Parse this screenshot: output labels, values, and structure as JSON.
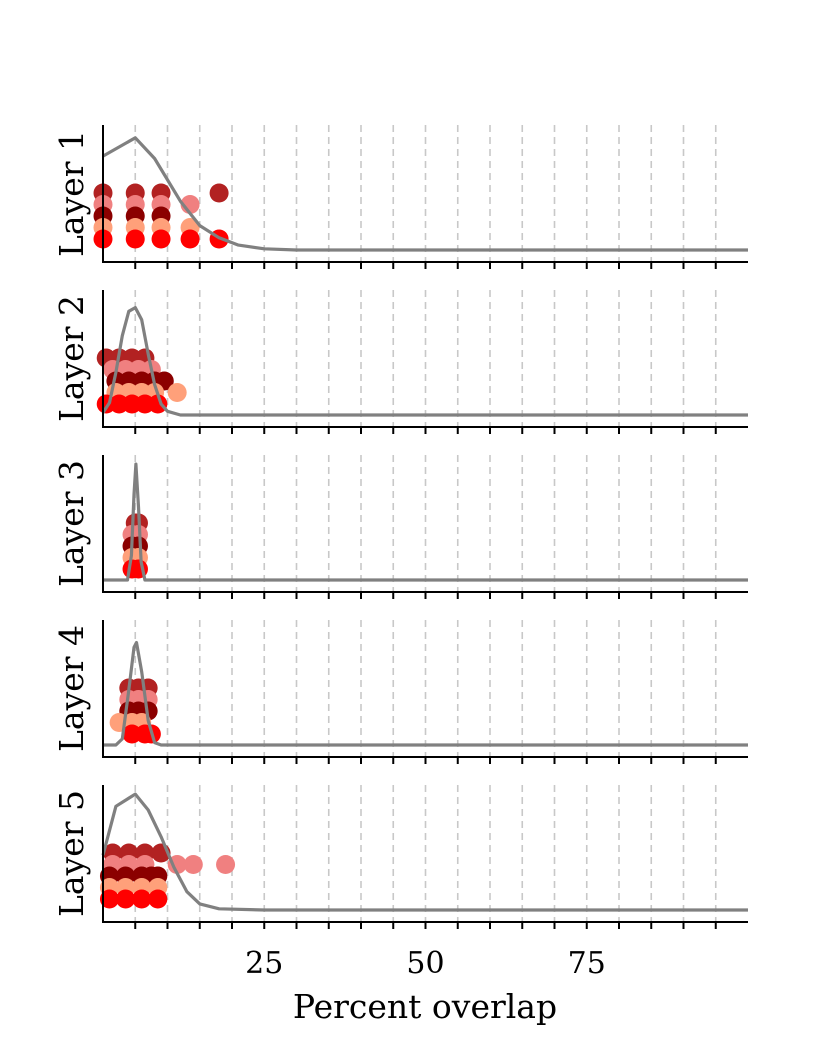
{
  "chart_data": {
    "type": "scatter",
    "xlabel": "Percent overlap",
    "xlim": [
      0,
      100
    ],
    "xticks": [
      5,
      10,
      15,
      20,
      25,
      30,
      35,
      40,
      45,
      50,
      55,
      60,
      65,
      70,
      75,
      80,
      85,
      90,
      95
    ],
    "xtick_labels": [
      {
        "value": 25,
        "label": "25"
      },
      {
        "value": 50,
        "label": "50"
      },
      {
        "value": 75,
        "label": "75"
      }
    ],
    "grid": "vertical dashed",
    "level_colors": [
      "#ff0000",
      "#ffa07a",
      "#8b0000",
      "#f08080",
      "#b22222"
    ],
    "density_color": "#808080",
    "panels": [
      {
        "ylabel": "Layer 1",
        "points": [
          {
            "x": 0,
            "level": 0
          },
          {
            "x": 5,
            "level": 0
          },
          {
            "x": 9,
            "level": 0
          },
          {
            "x": 13.5,
            "level": 0
          },
          {
            "x": 18,
            "level": 0
          },
          {
            "x": 0,
            "level": 1
          },
          {
            "x": 5,
            "level": 1
          },
          {
            "x": 9,
            "level": 1
          },
          {
            "x": 13.5,
            "level": 1
          },
          {
            "x": 0,
            "level": 2
          },
          {
            "x": 5,
            "level": 2
          },
          {
            "x": 9,
            "level": 2
          },
          {
            "x": 0,
            "level": 3
          },
          {
            "x": 5,
            "level": 3
          },
          {
            "x": 9,
            "level": 3
          },
          {
            "x": 13.5,
            "level": 3
          },
          {
            "x": 0,
            "level": 4
          },
          {
            "x": 5,
            "level": 4
          },
          {
            "x": 9,
            "level": 4
          },
          {
            "x": 18,
            "level": 4
          }
        ],
        "density": [
          [
            0,
            0.77
          ],
          [
            5,
            0.92
          ],
          [
            8,
            0.75
          ],
          [
            12,
            0.4
          ],
          [
            15,
            0.2
          ],
          [
            18,
            0.1
          ],
          [
            21,
            0.04
          ],
          [
            25,
            0.01
          ],
          [
            30,
            0.0
          ],
          [
            100,
            0.0
          ]
        ]
      },
      {
        "ylabel": "Layer 2",
        "points": [
          {
            "x": 0.5,
            "level": 0
          },
          {
            "x": 2.5,
            "level": 0
          },
          {
            "x": 4.5,
            "level": 0
          },
          {
            "x": 6.5,
            "level": 0
          },
          {
            "x": 8.5,
            "level": 0
          },
          {
            "x": 2,
            "level": 1
          },
          {
            "x": 4,
            "level": 1
          },
          {
            "x": 6,
            "level": 1
          },
          {
            "x": 8,
            "level": 1
          },
          {
            "x": 11.5,
            "level": 1
          },
          {
            "x": 2,
            "level": 2
          },
          {
            "x": 4,
            "level": 2
          },
          {
            "x": 6,
            "level": 2
          },
          {
            "x": 8,
            "level": 2
          },
          {
            "x": 9.5,
            "level": 2
          },
          {
            "x": 1.5,
            "level": 3
          },
          {
            "x": 3.5,
            "level": 3
          },
          {
            "x": 5.5,
            "level": 3
          },
          {
            "x": 7.5,
            "level": 3
          },
          {
            "x": 0.5,
            "level": 4
          },
          {
            "x": 2.5,
            "level": 4
          },
          {
            "x": 4.5,
            "level": 4
          },
          {
            "x": 6.5,
            "level": 4
          }
        ],
        "density": [
          [
            0,
            0.02
          ],
          [
            1,
            0.1
          ],
          [
            2,
            0.35
          ],
          [
            3,
            0.65
          ],
          [
            4,
            0.85
          ],
          [
            5,
            0.88
          ],
          [
            6,
            0.78
          ],
          [
            7,
            0.5
          ],
          [
            8,
            0.25
          ],
          [
            9,
            0.09
          ],
          [
            10,
            0.03
          ],
          [
            12,
            0.0
          ],
          [
            100,
            0.0
          ]
        ]
      },
      {
        "ylabel": "Layer 3",
        "points": [
          {
            "x": 4.5,
            "level": 0
          },
          {
            "x": 5.5,
            "level": 0
          },
          {
            "x": 4.5,
            "level": 1
          },
          {
            "x": 5.5,
            "level": 1
          },
          {
            "x": 4.5,
            "level": 2
          },
          {
            "x": 5.5,
            "level": 2
          },
          {
            "x": 4.5,
            "level": 3
          },
          {
            "x": 5.5,
            "level": 3
          },
          {
            "x": 5,
            "level": 4
          },
          {
            "x": 5.5,
            "level": 4
          }
        ],
        "density": [
          [
            0,
            0.0
          ],
          [
            3.8,
            0.0
          ],
          [
            4.4,
            0.2
          ],
          [
            4.8,
            0.7
          ],
          [
            5.1,
            0.95
          ],
          [
            5.5,
            0.6
          ],
          [
            5.9,
            0.15
          ],
          [
            6.5,
            0.0
          ],
          [
            100,
            0.0
          ]
        ]
      },
      {
        "ylabel": "Layer 4",
        "points": [
          {
            "x": 4.5,
            "level": 0
          },
          {
            "x": 6.5,
            "level": 0
          },
          {
            "x": 7.5,
            "level": 0
          },
          {
            "x": 2.5,
            "level": 1
          },
          {
            "x": 4.5,
            "level": 1
          },
          {
            "x": 6,
            "level": 1
          },
          {
            "x": 4,
            "level": 2
          },
          {
            "x": 5.5,
            "level": 2
          },
          {
            "x": 7,
            "level": 2
          },
          {
            "x": 4,
            "level": 3
          },
          {
            "x": 5.5,
            "level": 3
          },
          {
            "x": 7,
            "level": 3
          },
          {
            "x": 4,
            "level": 4
          },
          {
            "x": 5.5,
            "level": 4
          },
          {
            "x": 7,
            "level": 4
          }
        ],
        "density": [
          [
            0,
            0.0
          ],
          [
            2,
            0.0
          ],
          [
            3,
            0.05
          ],
          [
            4,
            0.45
          ],
          [
            4.8,
            0.8
          ],
          [
            5.2,
            0.84
          ],
          [
            6,
            0.6
          ],
          [
            7,
            0.2
          ],
          [
            8,
            0.02
          ],
          [
            9,
            0.0
          ],
          [
            100,
            0.0
          ]
        ]
      },
      {
        "ylabel": "Layer 5",
        "points": [
          {
            "x": 1,
            "level": 0
          },
          {
            "x": 3.5,
            "level": 0
          },
          {
            "x": 6,
            "level": 0
          },
          {
            "x": 8.5,
            "level": 0
          },
          {
            "x": 1,
            "level": 1
          },
          {
            "x": 3.5,
            "level": 1
          },
          {
            "x": 6,
            "level": 1
          },
          {
            "x": 8.5,
            "level": 1
          },
          {
            "x": 1,
            "level": 2
          },
          {
            "x": 3.5,
            "level": 2
          },
          {
            "x": 6,
            "level": 2
          },
          {
            "x": 8.5,
            "level": 2
          },
          {
            "x": 7.5,
            "level": 2
          },
          {
            "x": 1.5,
            "level": 3
          },
          {
            "x": 4,
            "level": 3
          },
          {
            "x": 6.5,
            "level": 3
          },
          {
            "x": 11.5,
            "level": 3
          },
          {
            "x": 14,
            "level": 3
          },
          {
            "x": 19,
            "level": 3
          },
          {
            "x": 1.5,
            "level": 4
          },
          {
            "x": 4,
            "level": 4
          },
          {
            "x": 6.5,
            "level": 4
          },
          {
            "x": 9,
            "level": 4
          }
        ],
        "density": [
          [
            0,
            0.45
          ],
          [
            2,
            0.85
          ],
          [
            5,
            0.95
          ],
          [
            7,
            0.82
          ],
          [
            9,
            0.6
          ],
          [
            11,
            0.35
          ],
          [
            13,
            0.15
          ],
          [
            15,
            0.05
          ],
          [
            18,
            0.01
          ],
          [
            25,
            0.0
          ],
          [
            100,
            0.0
          ]
        ]
      }
    ]
  }
}
